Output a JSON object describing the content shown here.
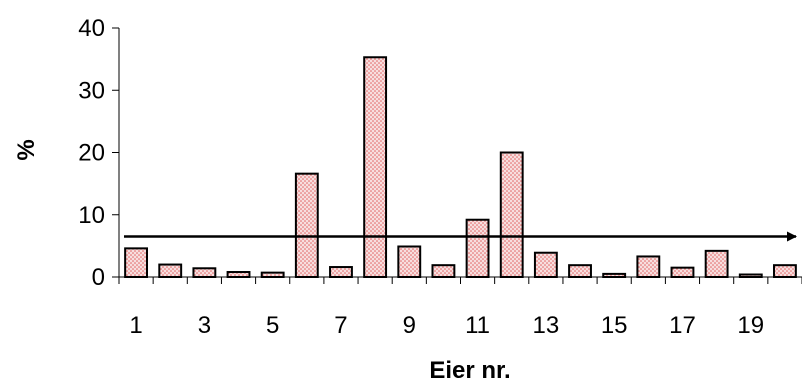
{
  "chart_data": {
    "type": "bar",
    "title": "",
    "xlabel": "Eier nr.",
    "ylabel": "%",
    "ylim": [
      0,
      40
    ],
    "yticks": [
      0,
      10,
      20,
      30,
      40
    ],
    "categories": [
      1,
      2,
      3,
      4,
      5,
      6,
      7,
      8,
      9,
      10,
      11,
      12,
      13,
      14,
      15,
      16,
      17,
      18,
      19,
      20
    ],
    "xtick_labels": [
      "1",
      "3",
      "5",
      "7",
      "9",
      "11",
      "13",
      "15",
      "17",
      "19"
    ],
    "values": [
      4.6,
      2.0,
      1.4,
      0.8,
      0.7,
      16.6,
      1.6,
      35.3,
      4.9,
      1.9,
      9.2,
      20.0,
      3.9,
      1.9,
      0.5,
      3.3,
      1.5,
      4.2,
      0.4,
      1.9
    ],
    "reference_line": {
      "value": 6.5,
      "style": "arrow"
    },
    "bar_fill": "#f4c6c6",
    "bar_pattern_dot": "#e06060",
    "bar_stroke": "#000000",
    "grid": false
  }
}
